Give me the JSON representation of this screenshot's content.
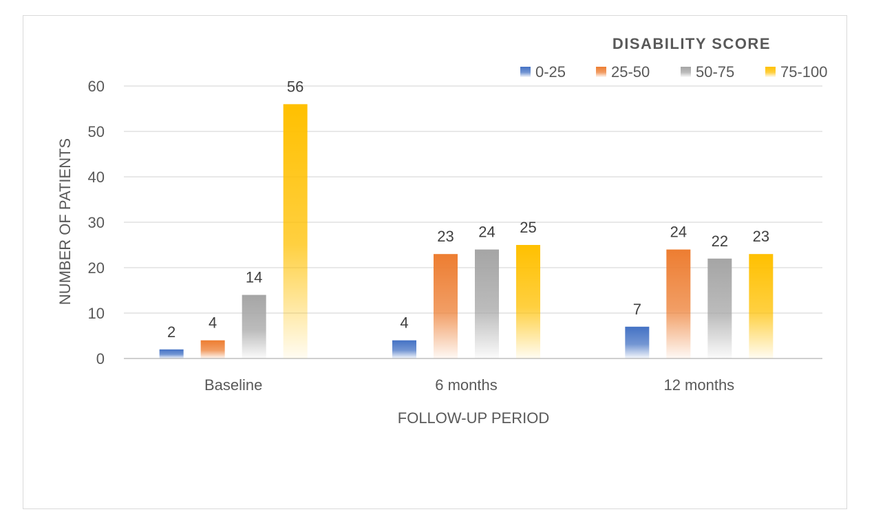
{
  "chart_data": {
    "type": "bar",
    "title": "",
    "legend_title": "DISABILITY SCORE",
    "legend_position": "top-right",
    "xlabel": "FOLLOW-UP PERIOD",
    "ylabel": "NUMBER OF PATIENTS",
    "categories": [
      "Baseline",
      "6 months",
      "12 months"
    ],
    "ylim": [
      0,
      60
    ],
    "yticks": [
      0,
      10,
      20,
      30,
      40,
      50,
      60
    ],
    "grid": true,
    "series": [
      {
        "name": "0-25",
        "color": "#4472c4",
        "values": [
          2,
          4,
          7
        ]
      },
      {
        "name": "25-50",
        "color": "#ed7d31",
        "values": [
          4,
          23,
          24
        ]
      },
      {
        "name": "50-75",
        "color": "#a5a5a5",
        "values": [
          14,
          24,
          22
        ]
      },
      {
        "name": "75-100",
        "color": "#ffc000",
        "values": [
          56,
          25,
          23
        ]
      }
    ]
  }
}
